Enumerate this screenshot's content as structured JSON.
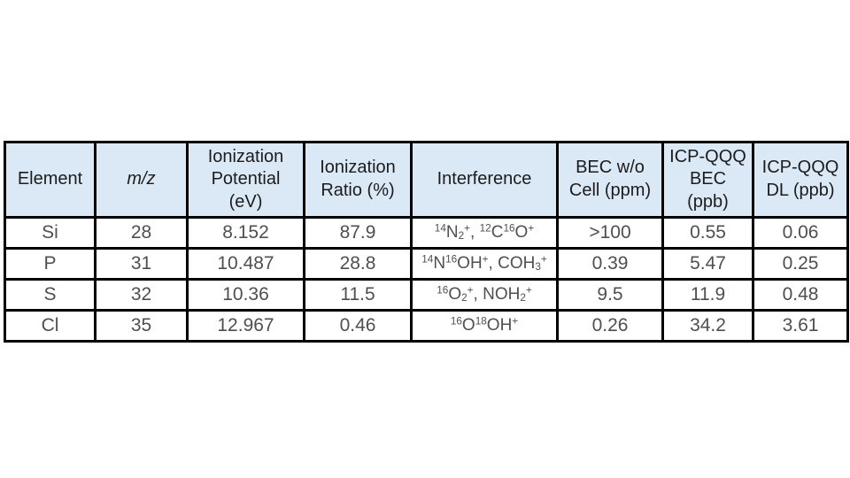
{
  "colors": {
    "page_bg": "#ffffff",
    "header_bg": "#dbe9f7",
    "border": "#000000",
    "header_text": "#1c1c1c",
    "body_text": "#4f4f4f"
  },
  "table": {
    "columns": [
      {
        "id": "element",
        "label": "Element"
      },
      {
        "id": "mz",
        "label": "m/z",
        "italic": true
      },
      {
        "id": "ionization_potential",
        "label": "Ionization\nPotential\n(eV)"
      },
      {
        "id": "ionization_ratio",
        "label": "Ionization\nRatio (%)"
      },
      {
        "id": "interference",
        "label": "Interference"
      },
      {
        "id": "bec_wo_cell",
        "label": "BEC w/o\nCell (ppm)"
      },
      {
        "id": "icpqqq_bec",
        "label": "ICP-QQQ\nBEC\n(ppb)"
      },
      {
        "id": "icpqqq_dl",
        "label": "ICP-QQQ\nDL (ppb)"
      }
    ],
    "rows": [
      {
        "element": "Si",
        "mz": "28",
        "ionization_potential": "8.152",
        "ionization_ratio": "87.9",
        "interference": [
          {
            "s": "sup",
            "t": "14"
          },
          {
            "s": "",
            "t": "N"
          },
          {
            "s": "sub",
            "t": "2"
          },
          {
            "s": "sup",
            "t": "+"
          },
          {
            "s": "",
            "t": ", "
          },
          {
            "s": "sup",
            "t": "12"
          },
          {
            "s": "",
            "t": "C"
          },
          {
            "s": "sup",
            "t": "16"
          },
          {
            "s": "",
            "t": "O"
          },
          {
            "s": "sup",
            "t": "+"
          }
        ],
        "bec_wo_cell": ">100",
        "icpqqq_bec": "0.55",
        "icpqqq_dl": "0.06"
      },
      {
        "element": "P",
        "mz": "31",
        "ionization_potential": "10.487",
        "ionization_ratio": "28.8",
        "interference": [
          {
            "s": "sup",
            "t": "14"
          },
          {
            "s": "",
            "t": "N"
          },
          {
            "s": "sup",
            "t": "16"
          },
          {
            "s": "",
            "t": "OH"
          },
          {
            "s": "sup",
            "t": "+"
          },
          {
            "s": "",
            "t": ", COH"
          },
          {
            "s": "sub",
            "t": "3"
          },
          {
            "s": "sup",
            "t": "+"
          }
        ],
        "bec_wo_cell": "0.39",
        "icpqqq_bec": "5.47",
        "icpqqq_dl": "0.25"
      },
      {
        "element": "S",
        "mz": "32",
        "ionization_potential": "10.36",
        "ionization_ratio": "11.5",
        "interference": [
          {
            "s": "sup",
            "t": "16"
          },
          {
            "s": "",
            "t": "O"
          },
          {
            "s": "sub",
            "t": "2"
          },
          {
            "s": "sup",
            "t": "+"
          },
          {
            "s": "",
            "t": ", NOH"
          },
          {
            "s": "sub",
            "t": "2"
          },
          {
            "s": "sup",
            "t": "+"
          }
        ],
        "bec_wo_cell": "9.5",
        "icpqqq_bec": "11.9",
        "icpqqq_dl": "0.48"
      },
      {
        "element": "Cl",
        "mz": "35",
        "ionization_potential": "12.967",
        "ionization_ratio": "0.46",
        "interference": [
          {
            "s": "sup",
            "t": "16"
          },
          {
            "s": "",
            "t": "O"
          },
          {
            "s": "sup",
            "t": "18"
          },
          {
            "s": "",
            "t": "OH"
          },
          {
            "s": "sup",
            "t": "+"
          }
        ],
        "bec_wo_cell": "0.26",
        "icpqqq_bec": "34.2",
        "icpqqq_dl": "3.61"
      }
    ]
  }
}
